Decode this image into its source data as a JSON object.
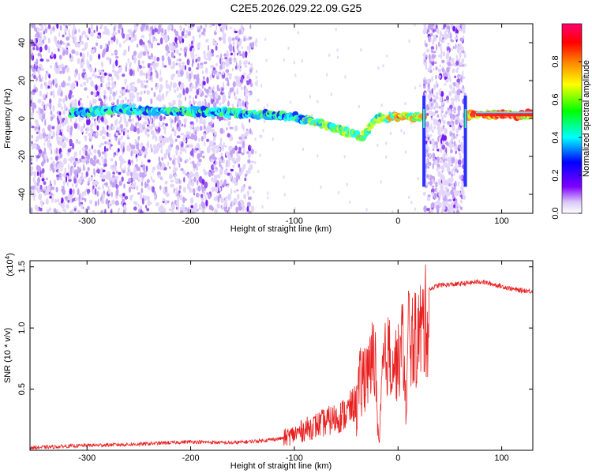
{
  "title": "C2E5.2026.029.22.09.G25",
  "chart_data": [
    {
      "type": "heatmap",
      "xlabel": "Height of straight line (km)",
      "ylabel": "Frequency (Hz)",
      "xlim": [
        -355,
        130
      ],
      "ylim": [
        -50,
        50
      ],
      "xticks": [
        -300,
        -200,
        -100,
        0,
        100
      ],
      "yticks": [
        -40,
        -20,
        0,
        20,
        40
      ],
      "colorbar": {
        "label": "Normalized spectral amplitude",
        "range": [
          0.0,
          1.0
        ],
        "ticks": [
          0.0,
          0.2,
          0.4,
          0.6,
          0.8
        ],
        "colors": [
          "#ffffff",
          "#b58cf0",
          "#8000ff",
          "#0000ff",
          "#00ffff",
          "#00ff00",
          "#ffff00",
          "#ff8000",
          "#ff0000",
          "#ff0080"
        ]
      },
      "ridge": {
        "x": [
          -310,
          -270,
          -240,
          -200,
          -160,
          -130,
          -100,
          -80,
          -60,
          -45,
          -35,
          -20,
          0,
          20,
          70,
          130
        ],
        "y": [
          3,
          5,
          4,
          4,
          3,
          2,
          1,
          -2,
          -5,
          -8,
          -10,
          0,
          1,
          1,
          2,
          2
        ]
      },
      "bands": [
        [
          -355,
          -140
        ],
        [
          25,
          65
        ]
      ],
      "band_edges": [
        25,
        65
      ]
    },
    {
      "type": "line",
      "xlabel": "Height of straight line (km)",
      "ylabel": "SNR (10 * v/v)",
      "multiplier": "(x10^4)",
      "xlim": [
        -355,
        130
      ],
      "ylim": [
        0,
        1.55
      ],
      "xticks": [
        -300,
        -200,
        -100,
        0,
        100
      ],
      "yticks": [
        0.5,
        1.0,
        1.5
      ],
      "ytick_labels": [
        "0.5",
        "1.0",
        "1.5"
      ],
      "series": [
        {
          "color": "#e82020",
          "x": [
            -355,
            -300,
            -250,
            -200,
            -160,
            -130,
            -110,
            -100,
            -90,
            -80,
            -70,
            -60,
            -50,
            -40,
            -35,
            -30,
            -25,
            -22,
            -20,
            -18,
            -15,
            -10,
            -5,
            0,
            5,
            8,
            10,
            15,
            20,
            25,
            30,
            40,
            60,
            80,
            100,
            115,
            130
          ],
          "y": [
            0.02,
            0.04,
            0.05,
            0.07,
            0.06,
            0.08,
            0.1,
            0.13,
            0.17,
            0.2,
            0.23,
            0.26,
            0.3,
            0.4,
            0.55,
            0.7,
            0.9,
            1.0,
            0.25,
            0.05,
            0.8,
            0.95,
            0.9,
            0.85,
            1.1,
            0.3,
            1.2,
            1.05,
            1.15,
            1.25,
            1.32,
            1.35,
            1.36,
            1.38,
            1.34,
            1.31,
            1.3
          ]
        }
      ]
    }
  ]
}
